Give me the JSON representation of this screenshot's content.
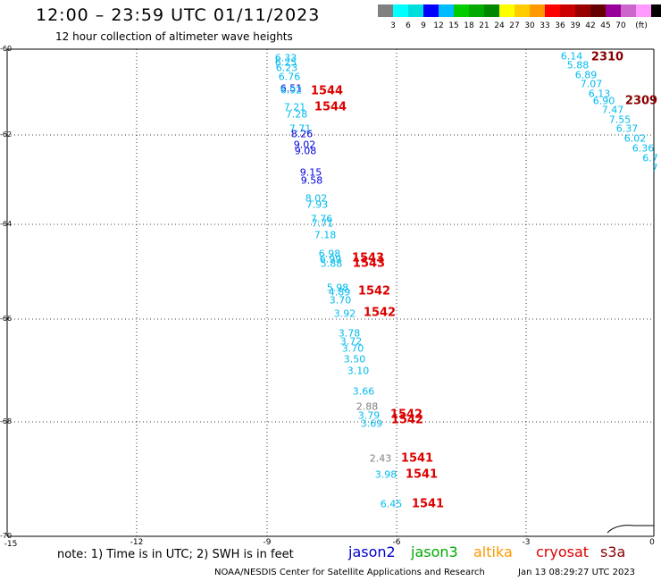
{
  "header": {
    "title": "12:00 – 23:59 UTC 01/11/2023",
    "subtitle": "12 hour collection of altimeter wave heights"
  },
  "colorbar": {
    "colors": [
      "#808080",
      "#00ffff",
      "#00dddd",
      "#0000ff",
      "#00bbff",
      "#00cc00",
      "#00aa00",
      "#008800",
      "#ffff00",
      "#ffcc00",
      "#ff9900",
      "#ff0000",
      "#cc0000",
      "#990000",
      "#660000",
      "#990099",
      "#cc66cc",
      "#ff99ff",
      "#000000"
    ],
    "labels": [
      "3",
      "6",
      "9",
      "12",
      "15",
      "18",
      "21",
      "24",
      "27",
      "30",
      "33",
      "36",
      "39",
      "42",
      "45",
      "70",
      "(ft)"
    ]
  },
  "axes": {
    "y_labels": [
      "-60",
      "-62",
      "-64",
      "-66",
      "-68",
      "-70"
    ],
    "x_labels": [
      "-15",
      "-12",
      "-9",
      "-6",
      "-3",
      "0"
    ]
  },
  "wave_heights": [
    {
      "text": "6.33",
      "color": "#00bbee"
    },
    {
      "text": "6.25",
      "color": "#00bbee"
    },
    {
      "text": "6.23",
      "color": "#00bbee"
    },
    {
      "text": "6.76",
      "color": "#00bbee"
    },
    {
      "text": "6.51",
      "color": "#0000dd"
    },
    {
      "text": "6.92",
      "color": "#00bbee"
    },
    {
      "text": "7.21",
      "color": "#00bbee"
    },
    {
      "text": "7.28",
      "color": "#00bbee"
    },
    {
      "text": "7.71",
      "color": "#00bbee"
    },
    {
      "text": "8.26",
      "color": "#0000dd"
    },
    {
      "text": "9.02",
      "color": "#0000dd"
    },
    {
      "text": "9.08",
      "color": "#0000dd"
    },
    {
      "text": "9.15",
      "color": "#0000dd"
    },
    {
      "text": "9.58",
      "color": "#0000dd"
    },
    {
      "text": "8.02",
      "color": "#00bbee"
    },
    {
      "text": "7.93",
      "color": "#00bbee"
    },
    {
      "text": "7.76",
      "color": "#00bbee"
    },
    {
      "text": "7.71",
      "color": "#00bbee"
    },
    {
      "text": "7.18",
      "color": "#00bbee"
    },
    {
      "text": "6.98",
      "color": "#00bbee"
    },
    {
      "text": "6.99",
      "color": "#00bbee"
    },
    {
      "text": "5.88",
      "color": "#00bbee"
    },
    {
      "text": "5.98",
      "color": "#00bbee"
    },
    {
      "text": "4.89",
      "color": "#00bbee"
    },
    {
      "text": "3.70",
      "color": "#00bbee"
    },
    {
      "text": "3.92",
      "color": "#00bbee"
    },
    {
      "text": "3.78",
      "color": "#00bbee"
    },
    {
      "text": "3.72",
      "color": "#00bbee"
    },
    {
      "text": "3.70",
      "color": "#00bbee"
    },
    {
      "text": "3.50",
      "color": "#00bbee"
    },
    {
      "text": "3.10",
      "color": "#00bbee"
    },
    {
      "text": "3.66",
      "color": "#00bbee"
    },
    {
      "text": "2.88",
      "color": "#808080"
    },
    {
      "text": "3.79",
      "color": "#00bbee"
    },
    {
      "text": "3.69",
      "color": "#00bbee"
    },
    {
      "text": "2.43",
      "color": "#808080"
    },
    {
      "text": "3.98",
      "color": "#00bbee"
    },
    {
      "text": "6.45",
      "color": "#00bbee"
    },
    {
      "text": "6.14",
      "color": "#00bbee"
    },
    {
      "text": "5.88",
      "color": "#00bbee"
    },
    {
      "text": "6.89",
      "color": "#00bbee"
    },
    {
      "text": "7.07",
      "color": "#00bbee"
    },
    {
      "text": "6.13",
      "color": "#00bbee"
    },
    {
      "text": "6.90",
      "color": "#00bbee"
    },
    {
      "text": "7.47",
      "color": "#00bbee"
    },
    {
      "text": "7.55",
      "color": "#00bbee"
    },
    {
      "text": "6.37",
      "color": "#00bbee"
    },
    {
      "text": "6.02",
      "color": "#00bbee"
    },
    {
      "text": "6.36",
      "color": "#00bbee"
    },
    {
      "text": "6.7",
      "color": "#00bbee"
    },
    {
      "text": "7",
      "color": "#00bbee"
    }
  ],
  "pass_labels": [
    {
      "text": "1544",
      "color": "#dd0000"
    },
    {
      "text": "1544",
      "color": "#dd0000"
    },
    {
      "text": "1543",
      "color": "#dd0000"
    },
    {
      "text": "1543",
      "color": "#dd0000"
    },
    {
      "text": "1542",
      "color": "#dd0000"
    },
    {
      "text": "1542",
      "color": "#dd0000"
    },
    {
      "text": "1542",
      "color": "#dd0000"
    },
    {
      "text": "1542",
      "color": "#dd0000"
    },
    {
      "text": "1541",
      "color": "#dd0000"
    },
    {
      "text": "1541",
      "color": "#dd0000"
    },
    {
      "text": "1541",
      "color": "#dd0000"
    },
    {
      "text": "2310",
      "color": "#880000"
    },
    {
      "text": "2309",
      "color": "#880000"
    }
  ],
  "note": "note:  1) Time is in UTC; 2) SWH is in feet",
  "legend": [
    {
      "text": "jason2",
      "color": "#0000cc"
    },
    {
      "text": "jason3",
      "color": "#00aa00"
    },
    {
      "text": "altika",
      "color": "#ff9900"
    },
    {
      "text": "cryosat",
      "color": "#dd0000"
    },
    {
      "text": "s3a",
      "color": "#880000"
    }
  ],
  "footer": {
    "left": "NOAA/NESDIS Center for Satellite Applications and Research",
    "right": "Jan 13 08:29:27 UTC 2023"
  }
}
